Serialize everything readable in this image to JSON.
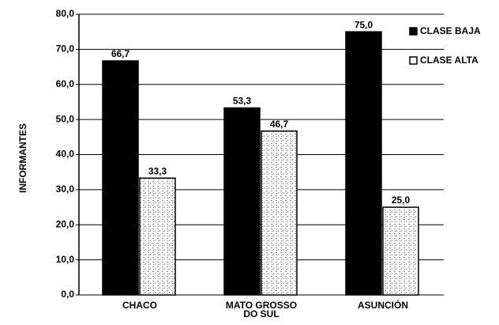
{
  "chart_data": {
    "type": "bar",
    "y_label": "INFORMANTES",
    "categories": [
      "CHACO",
      "MATO GROSSO DO SUL",
      "ASUNCIÓN"
    ],
    "series": [
      {
        "name": "CLASE BAJA",
        "color": "#000000",
        "values": [
          66.7,
          53.3,
          75.0
        ],
        "value_labels": [
          "66,7",
          "53,3",
          "75,0"
        ]
      },
      {
        "name": "CLASE ALTA",
        "color": "#ffffff",
        "values": [
          33.3,
          46.7,
          25.0
        ],
        "value_labels": [
          "33,3",
          "46,7",
          "25,0"
        ]
      }
    ],
    "ylim": [
      0,
      80
    ],
    "yticks": [
      {
        "value": 0,
        "label": "0,0"
      },
      {
        "value": 10,
        "label": "10,0"
      },
      {
        "value": 20,
        "label": "20,0"
      },
      {
        "value": 30,
        "label": "30,0"
      },
      {
        "value": 40,
        "label": "40,0"
      },
      {
        "value": 50,
        "label": "50,0"
      },
      {
        "value": 60,
        "label": "60,0"
      },
      {
        "value": 70,
        "label": "70,0"
      },
      {
        "value": 80,
        "label": "80,0"
      }
    ],
    "grid": true,
    "legend": "top-right"
  }
}
